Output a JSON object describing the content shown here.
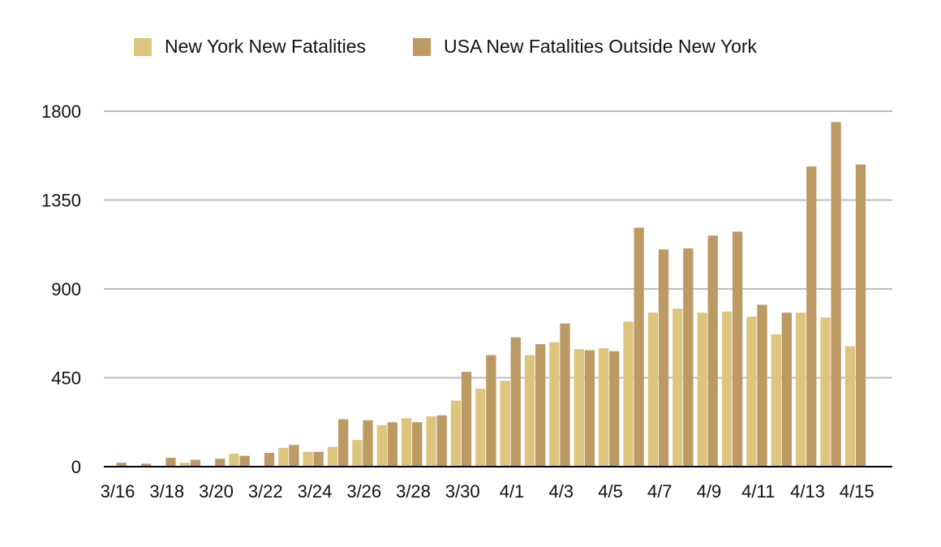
{
  "chart_data": {
    "type": "bar",
    "title": "",
    "xlabel": "",
    "ylabel": "",
    "ylim": [
      0,
      1800
    ],
    "yticks": [
      "0",
      "450",
      "900",
      "1350",
      "1800"
    ],
    "grid": true,
    "legend_position": "top",
    "categories": [
      "3/16",
      "3/17",
      "3/18",
      "3/19",
      "3/20",
      "3/21",
      "3/22",
      "3/23",
      "3/24",
      "3/25",
      "3/26",
      "3/27",
      "3/28",
      "3/29",
      "3/30",
      "3/31",
      "4/1",
      "4/2",
      "4/3",
      "4/4",
      "4/5",
      "4/6",
      "4/7",
      "4/8",
      "4/9",
      "4/10",
      "4/11",
      "4/12",
      "4/13",
      "4/14",
      "4/15",
      "4/16"
    ],
    "xtick_labels": [
      "3/16",
      "3/18",
      "3/20",
      "3/22",
      "3/24",
      "3/26",
      "3/28",
      "3/30",
      "4/1",
      "4/3",
      "4/5",
      "4/7",
      "4/9",
      "4/11",
      "4/13",
      "4/15"
    ],
    "series": [
      {
        "name": "New York New Fatalities",
        "color": "#DDC57E",
        "values": [
          0,
          0,
          0,
          20,
          5,
          65,
          0,
          95,
          75,
          100,
          135,
          210,
          245,
          255,
          335,
          395,
          435,
          565,
          630,
          595,
          600,
          735,
          780,
          800,
          780,
          785,
          760,
          670,
          780,
          755,
          610,
          0
        ]
      },
      {
        "name": "USA New Fatalities Outside New York",
        "color": "#BD9964",
        "values": [
          20,
          15,
          45,
          35,
          40,
          55,
          70,
          110,
          75,
          240,
          235,
          225,
          225,
          260,
          480,
          565,
          655,
          620,
          725,
          590,
          585,
          1210,
          1100,
          1105,
          1170,
          1190,
          820,
          780,
          1520,
          1745,
          1530,
          0
        ]
      }
    ]
  }
}
